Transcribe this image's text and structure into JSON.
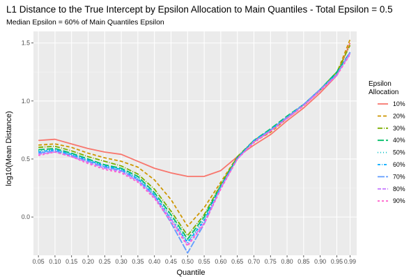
{
  "chart_data": {
    "type": "line",
    "title": "L1 Distance to the True Intercept by Epsilon Allocation to Main Quantiles - Total Epsilon = 0.5",
    "subtitle": "Median Epsilon = 60% of Main Quantiles Epsilon",
    "xlabel": "Quantile",
    "ylabel": "log10(Mean Distance)",
    "xlim": [
      0.035,
      1.01
    ],
    "ylim": [
      -0.33,
      1.6
    ],
    "x_ticks": [
      0.05,
      0.1,
      0.15,
      0.2,
      0.25,
      0.3,
      0.35,
      0.4,
      0.45,
      0.5,
      0.55,
      0.6,
      0.65,
      0.7,
      0.75,
      0.8,
      0.85,
      0.9,
      0.95,
      0.99
    ],
    "x_tick_labels": [
      "0.05",
      "0.10",
      "0.15",
      "0.20",
      "0.25",
      "0.30",
      "0.35",
      "0.40",
      "0.45",
      "0.50",
      "0.55",
      "0.60",
      "0.65",
      "0.70",
      "0.75",
      "0.80",
      "0.85",
      "0.90",
      "0.95",
      "0.99"
    ],
    "y_ticks": [
      0.0,
      0.5,
      1.0,
      1.5
    ],
    "y_tick_labels": [
      "0.0",
      "0.5",
      "1.0",
      "1.5"
    ],
    "grid": true,
    "background": "#ebebeb",
    "legend": {
      "title_lines": [
        "Epsilon",
        "Allocation"
      ],
      "placement": "right"
    },
    "x": [
      0.05,
      0.1,
      0.15,
      0.2,
      0.25,
      0.3,
      0.35,
      0.4,
      0.45,
      0.5,
      0.55,
      0.6,
      0.65,
      0.7,
      0.75,
      0.8,
      0.85,
      0.9,
      0.95,
      0.99
    ],
    "series": [
      {
        "name": "10%",
        "color": "#F8766D",
        "dash": "",
        "values": [
          0.66,
          0.67,
          0.63,
          0.59,
          0.56,
          0.54,
          0.48,
          0.42,
          0.38,
          0.35,
          0.35,
          0.4,
          0.52,
          0.62,
          0.71,
          0.83,
          0.94,
          1.07,
          1.22,
          1.5
        ]
      },
      {
        "name": "20%",
        "color": "#CD9600",
        "dash": "5,3",
        "values": [
          0.62,
          0.63,
          0.6,
          0.55,
          0.51,
          0.48,
          0.43,
          0.32,
          0.15,
          -0.08,
          0.08,
          0.3,
          0.52,
          0.65,
          0.73,
          0.85,
          0.96,
          1.09,
          1.24,
          1.53
        ]
      },
      {
        "name": "30%",
        "color": "#7CAE00",
        "dash": "7,2,1,2",
        "values": [
          0.6,
          0.61,
          0.57,
          0.52,
          0.48,
          0.44,
          0.37,
          0.24,
          0.05,
          -0.16,
          0.02,
          0.28,
          0.52,
          0.66,
          0.75,
          0.86,
          0.97,
          1.1,
          1.25,
          1.48
        ]
      },
      {
        "name": "40%",
        "color": "#00BE67",
        "dash": "9,3",
        "values": [
          0.58,
          0.59,
          0.55,
          0.5,
          0.45,
          0.42,
          0.35,
          0.21,
          0.02,
          -0.19,
          0.0,
          0.27,
          0.51,
          0.66,
          0.76,
          0.87,
          0.97,
          1.1,
          1.25,
          1.42
        ]
      },
      {
        "name": "50%",
        "color": "#00BFC4",
        "dash": "1,3",
        "values": [
          0.57,
          0.58,
          0.54,
          0.49,
          0.44,
          0.41,
          0.34,
          0.2,
          0.0,
          -0.21,
          -0.02,
          0.26,
          0.51,
          0.66,
          0.75,
          0.86,
          0.97,
          1.1,
          1.24,
          1.4
        ]
      },
      {
        "name": "60%",
        "color": "#00A9FF",
        "dash": "4,2,1,2",
        "values": [
          0.56,
          0.58,
          0.54,
          0.49,
          0.44,
          0.41,
          0.33,
          0.19,
          -0.02,
          -0.22,
          -0.03,
          0.26,
          0.51,
          0.66,
          0.75,
          0.86,
          0.97,
          1.1,
          1.23,
          1.42
        ]
      },
      {
        "name": "70%",
        "color": "#619CFF",
        "dash": "10,2",
        "values": [
          0.55,
          0.57,
          0.53,
          0.48,
          0.43,
          0.4,
          0.32,
          0.18,
          -0.05,
          -0.31,
          -0.06,
          0.25,
          0.5,
          0.65,
          0.75,
          0.86,
          0.97,
          1.1,
          1.23,
          1.42
        ]
      },
      {
        "name": "80%",
        "color": "#C77CFF",
        "dash": "5,2",
        "values": [
          0.54,
          0.56,
          0.52,
          0.47,
          0.42,
          0.39,
          0.31,
          0.17,
          -0.02,
          -0.24,
          -0.05,
          0.25,
          0.5,
          0.65,
          0.74,
          0.85,
          0.96,
          1.09,
          1.22,
          1.41
        ]
      },
      {
        "name": "90%",
        "color": "#FF61CC",
        "dash": "3,3",
        "values": [
          0.53,
          0.56,
          0.52,
          0.46,
          0.41,
          0.38,
          0.3,
          0.16,
          -0.04,
          -0.25,
          -0.06,
          0.24,
          0.5,
          0.64,
          0.74,
          0.85,
          0.96,
          1.09,
          1.22,
          1.4
        ]
      }
    ]
  }
}
